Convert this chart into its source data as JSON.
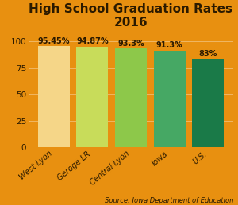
{
  "title": "High School Graduation Rates\n2016",
  "categories": [
    "West Lyon",
    "Geroge LR",
    "Central Lyon",
    "Iowa",
    "U.S."
  ],
  "values": [
    95.45,
    94.87,
    93.3,
    91.3,
    83
  ],
  "value_labels": [
    "95.45%",
    "94.87%",
    "93.3%",
    "91.3%",
    "83%"
  ],
  "bar_colors": [
    "#F5D688",
    "#C8DC5A",
    "#8DC84A",
    "#46A864",
    "#1A7A48"
  ],
  "background_color": "#E89010",
  "title_color": "#2B1A00",
  "bar_label_color": "#2B1A00",
  "axis_label_color": "#2B1A00",
  "source_text": "Source: Iowa Department of Education",
  "ylim": [
    0,
    108
  ],
  "yticks": [
    0,
    25,
    50,
    75,
    100
  ],
  "title_fontsize": 11,
  "label_fontsize": 7,
  "tick_fontsize": 7.5,
  "source_fontsize": 6
}
